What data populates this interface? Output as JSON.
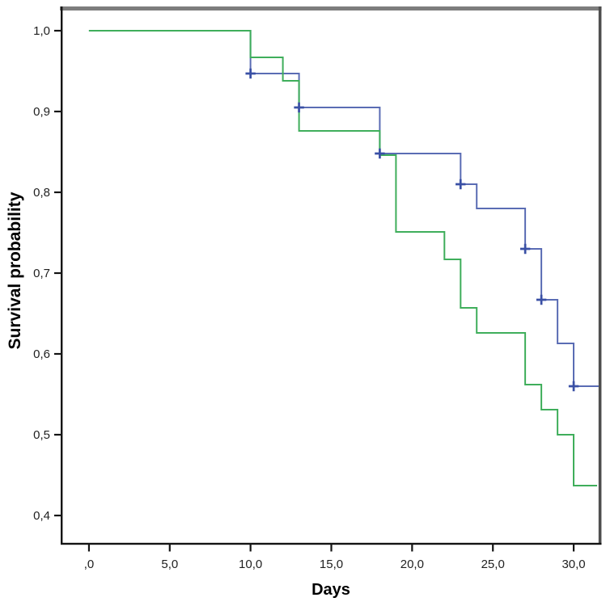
{
  "chart_data": {
    "type": "line",
    "subtype": "kaplan-meier-step-survival",
    "title": "",
    "xlabel": "Days",
    "ylabel": "Survival probability",
    "grid": false,
    "legend": "none",
    "decimal_separator": ",",
    "xlim": [
      -1.7,
      31.65
    ],
    "ylim": [
      0.365,
      1.028
    ],
    "x_ticks": [
      {
        "v": 0,
        "label": ",0"
      },
      {
        "v": 5,
        "label": "5,0"
      },
      {
        "v": 10,
        "label": "10,0"
      },
      {
        "v": 15,
        "label": "15,0"
      },
      {
        "v": 20,
        "label": "20,0"
      },
      {
        "v": 25,
        "label": "25,0"
      },
      {
        "v": 30,
        "label": "30,0"
      }
    ],
    "y_ticks": [
      {
        "v": 1.0,
        "label": "1,0"
      },
      {
        "v": 0.9,
        "label": "0,9"
      },
      {
        "v": 0.8,
        "label": "0,8"
      },
      {
        "v": 0.7,
        "label": "0,7"
      },
      {
        "v": 0.6,
        "label": "0,6"
      },
      {
        "v": 0.5,
        "label": "0,5"
      },
      {
        "v": 0.4,
        "label": "0,4"
      }
    ],
    "series": [
      {
        "id": "group-blue",
        "color": "#5a6cb4",
        "censor_color": "#3a50a5",
        "line_width": 2,
        "points": [
          [
            0,
            1.0
          ],
          [
            10,
            0.947
          ],
          [
            13,
            0.905
          ],
          [
            18,
            0.848
          ],
          [
            23,
            0.81
          ],
          [
            24,
            0.78
          ],
          [
            27,
            0.73
          ],
          [
            28,
            0.667
          ],
          [
            29,
            0.613
          ],
          [
            30,
            0.56
          ]
        ],
        "end_x": 31.55,
        "censors": [
          [
            10,
            0.947
          ],
          [
            13,
            0.905
          ],
          [
            18,
            0.848
          ],
          [
            23,
            0.81
          ],
          [
            27,
            0.73
          ],
          [
            28,
            0.667
          ],
          [
            30,
            0.56
          ]
        ]
      },
      {
        "id": "group-green",
        "color": "#3fae5b",
        "censor_color": "#3fae5b",
        "line_width": 2,
        "points": [
          [
            0,
            1.0
          ],
          [
            10,
            0.967
          ],
          [
            12,
            0.938
          ],
          [
            13,
            0.876
          ],
          [
            18,
            0.846
          ],
          [
            19,
            0.751
          ],
          [
            22,
            0.717
          ],
          [
            23,
            0.657
          ],
          [
            24,
            0.626
          ],
          [
            27,
            0.562
          ],
          [
            28,
            0.531
          ],
          [
            29,
            0.5
          ],
          [
            30,
            0.437
          ]
        ],
        "end_x": 31.45,
        "censors": []
      }
    ],
    "frame": {
      "top_border_color": "#7d7d7d",
      "right_border_color": "#4e4e4e",
      "axis_color": "#141414",
      "tick_label_color": "#1f1f1f"
    }
  }
}
